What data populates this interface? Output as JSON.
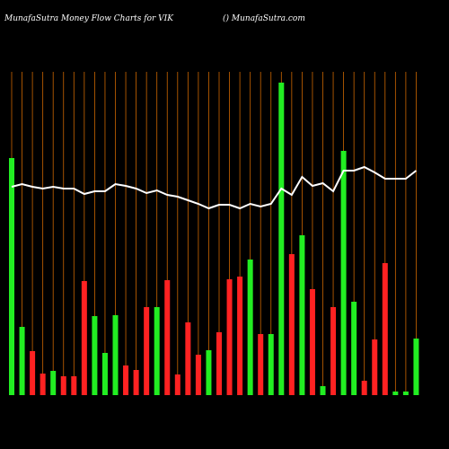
{
  "chart_data": {
    "type": "bar",
    "title": "MunafaSutra  Money Flow  Charts for VIK",
    "subtitle": "() MunafaSutra.com",
    "values": [
      264,
      76,
      49,
      24,
      27,
      21,
      21,
      127,
      88,
      47,
      89,
      33,
      28,
      98,
      98,
      128,
      23,
      81,
      45,
      50,
      70,
      129,
      132,
      151,
      68,
      68,
      348,
      157,
      178,
      118,
      10,
      98,
      272,
      104,
      16,
      62,
      147,
      4,
      4,
      63
    ],
    "colors": [
      "#22ee22",
      "#22ee22",
      "#ff2222",
      "#ff2222",
      "#22ee22",
      "#ff2222",
      "#ff2222",
      "#ff2222",
      "#22ee22",
      "#22ee22",
      "#22ee22",
      "#ff2222",
      "#ff2222",
      "#ff2222",
      "#22ee22",
      "#ff2222",
      "#ff2222",
      "#ff2222",
      "#ff2222",
      "#22ee22",
      "#ff2222",
      "#ff2222",
      "#ff2222",
      "#22ee22",
      "#ff2222",
      "#22ee22",
      "#22ee22",
      "#ff2222",
      "#22ee22",
      "#ff2222",
      "#22ee22",
      "#ff2222",
      "#22ee22",
      "#22ee22",
      "#ff2222",
      "#ff2222",
      "#ff2222",
      "#22ee22",
      "#22ee22",
      "#22ee22"
    ],
    "line_values": [
      232,
      235,
      232,
      230,
      232,
      230,
      230,
      224,
      227,
      227,
      235,
      233,
      230,
      225,
      228,
      223,
      221,
      217,
      213,
      208,
      212,
      212,
      208,
      213,
      210,
      213,
      230,
      223,
      243,
      233,
      236,
      227,
      250,
      250,
      254,
      248,
      241,
      241,
      241,
      250
    ],
    "line_color": "#ffffff",
    "grid_color": "#cc6600",
    "ylim": [
      0,
      360
    ]
  }
}
